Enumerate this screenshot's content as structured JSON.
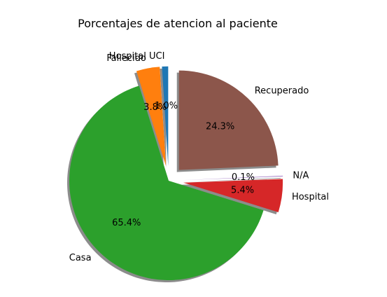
{
  "chart_data": {
    "type": "pie",
    "title": "Porcentajes de atencion al paciente",
    "shadow": true,
    "start_angle_deg": 90,
    "slices": [
      {
        "label": "Hospital UCI",
        "value": 1.0,
        "pct_label": "1.0%",
        "color": "#1f77b4",
        "exploded": true
      },
      {
        "label": "Fallecido",
        "value": 3.8,
        "pct_label": "3.8%",
        "color": "#ff7f0e",
        "exploded": true
      },
      {
        "label": "Casa",
        "value": 65.4,
        "pct_label": "65.4%",
        "color": "#2ca02c",
        "exploded": false
      },
      {
        "label": "Hospital",
        "value": 5.4,
        "pct_label": "5.4%",
        "color": "#d62728",
        "exploded": true
      },
      {
        "label": "N/A",
        "value": 0.1,
        "pct_label": "0.1%",
        "color": "#9467bd",
        "exploded": true
      },
      {
        "label": "Recuperado",
        "value": 24.3,
        "pct_label": "24.3%",
        "color": "#8c564b",
        "exploded": true
      }
    ]
  }
}
